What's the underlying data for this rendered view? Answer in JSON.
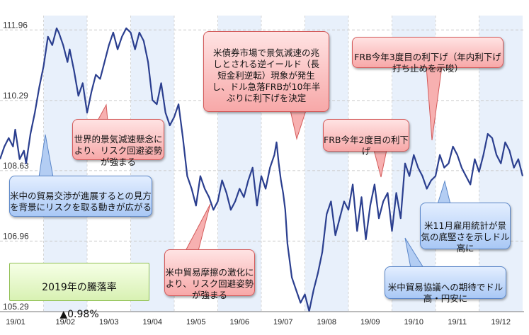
{
  "chart_data": {
    "type": "line",
    "title": "",
    "xlabel": "",
    "ylabel": "",
    "ylim": [
      105.29,
      112.3
    ],
    "yticks": [
      "111.96",
      "110.29",
      "108.63",
      "106.96",
      "105.29"
    ],
    "xticks": [
      "19/01",
      "19/02",
      "19/03",
      "19/04",
      "19/05",
      "19/06",
      "19/07",
      "19/08",
      "19/09",
      "19/10",
      "19/11",
      "19/12"
    ],
    "grid": true,
    "line_color": "#2b3f8f",
    "shade_color": "#e8f0fb",
    "series": [
      {
        "x": [
          0,
          0.1,
          0.2,
          0.3,
          0.35,
          0.45,
          0.55,
          0.6,
          0.7,
          0.8,
          0.9,
          1.0,
          1.1,
          1.2,
          1.3,
          1.35,
          1.45,
          1.55,
          1.6,
          1.7,
          1.8,
          1.9,
          2.0,
          2.1,
          2.2,
          2.3,
          2.4,
          2.5,
          2.6,
          2.7,
          2.8,
          2.9,
          3.0,
          3.1,
          3.2,
          3.3,
          3.4,
          3.5,
          3.6,
          3.7,
          3.8,
          3.9,
          4.0,
          4.1,
          4.2,
          4.3,
          4.4,
          4.5,
          4.6,
          4.7,
          4.8,
          4.9,
          5.0,
          5.1,
          5.2,
          5.3,
          5.4,
          5.5,
          5.6,
          5.7,
          5.8,
          5.9,
          6.0,
          6.1,
          6.2,
          6.3,
          6.35,
          6.4,
          6.45,
          6.5,
          6.55,
          6.6,
          6.7,
          6.8,
          6.9,
          7.0,
          7.1,
          7.2,
          7.3,
          7.4,
          7.5,
          7.6,
          7.7,
          7.8,
          7.9,
          8.0,
          8.1,
          8.2,
          8.3,
          8.4,
          8.5,
          8.6,
          8.7,
          8.8,
          8.9,
          9.0,
          9.1,
          9.2,
          9.3,
          9.4,
          9.5,
          9.6,
          9.7,
          9.8,
          9.9,
          10.0,
          10.1,
          10.2,
          10.3,
          10.4,
          10.5,
          10.6,
          10.7,
          10.8,
          10.9,
          11.0,
          11.1,
          11.2,
          11.3,
          11.4,
          11.5,
          11.6,
          11.7,
          11.8,
          11.9,
          12.0
        ],
        "values": [
          108.9,
          109.2,
          109.4,
          109.2,
          109.6,
          108.9,
          109.1,
          108.8,
          109.5,
          110.0,
          110.6,
          111.1,
          111.8,
          111.6,
          112.0,
          111.9,
          111.6,
          111.2,
          111.5,
          111.0,
          110.4,
          110.7,
          110.0,
          110.5,
          110.9,
          110.8,
          111.2,
          111.6,
          111.9,
          111.5,
          111.8,
          112.0,
          111.9,
          111.5,
          111.9,
          111.7,
          111.2,
          110.3,
          110.2,
          110.7,
          110.0,
          109.7,
          109.9,
          110.2,
          109.4,
          108.5,
          108.2,
          107.8,
          108.5,
          108.2,
          108.0,
          107.7,
          107.9,
          108.4,
          108.1,
          107.7,
          107.9,
          108.2,
          108.0,
          108.4,
          108.7,
          107.8,
          108.5,
          108.2,
          108.7,
          109.0,
          109.3,
          108.8,
          108.4,
          108.1,
          107.7,
          106.9,
          106.1,
          105.8,
          105.5,
          105.7,
          105.3,
          105.8,
          106.2,
          106.7,
          107.6,
          107.9,
          107.1,
          107.5,
          107.9,
          107.7,
          108.3,
          107.2,
          108.0,
          107.0,
          107.8,
          108.3,
          107.5,
          107.9,
          108.1,
          107.2,
          108.1,
          107.5,
          108.8,
          108.5,
          109.0,
          108.7,
          108.5,
          108.2,
          108.4,
          108.5,
          109.0,
          108.7,
          108.8,
          109.2,
          109.0,
          108.7,
          108.5,
          108.3,
          108.9,
          108.6,
          109.0,
          109.5,
          109.4,
          109.0,
          108.8,
          109.3,
          109.1,
          108.7,
          108.9,
          108.5
        ]
      }
    ]
  },
  "summary_box": {
    "title": "2019年の騰落率",
    "value": "▲0.98%"
  },
  "annotations": [
    {
      "id": "us-china-progress",
      "style": "blue",
      "text": "米中の貿易交渉が進展するとの見方を背景にリスクを取る動きが広がる"
    },
    {
      "id": "global-slowdown",
      "style": "red",
      "text": "世界的景気減速懸念により、リスク回避姿勢が強まる"
    },
    {
      "id": "trade-friction",
      "style": "red",
      "text": "米中貿易摩擦の激化により、リスク回避姿勢が強まる"
    },
    {
      "id": "yield-inversion",
      "style": "red",
      "text": "米債券市場で景気減速の兆しとされる逆イールド（長短金利逆転）現象が発生し、ドル急落FRBが10年半ぶりに利下げを決定"
    },
    {
      "id": "frb-second-cut",
      "style": "red",
      "text": "FRB今年2度目の利下げ"
    },
    {
      "id": "frb-third-cut",
      "style": "red",
      "text": "FRB今年3度目の利下げ（年内利下げ打ち止めを示唆）"
    },
    {
      "id": "us-jobs",
      "style": "blue",
      "text": "米11月雇用統計が景気の底堅さを示しドル高に"
    },
    {
      "id": "trade-talks-hope",
      "style": "blue",
      "text": "米中貿易協議への期待でドル高・円安に"
    }
  ]
}
